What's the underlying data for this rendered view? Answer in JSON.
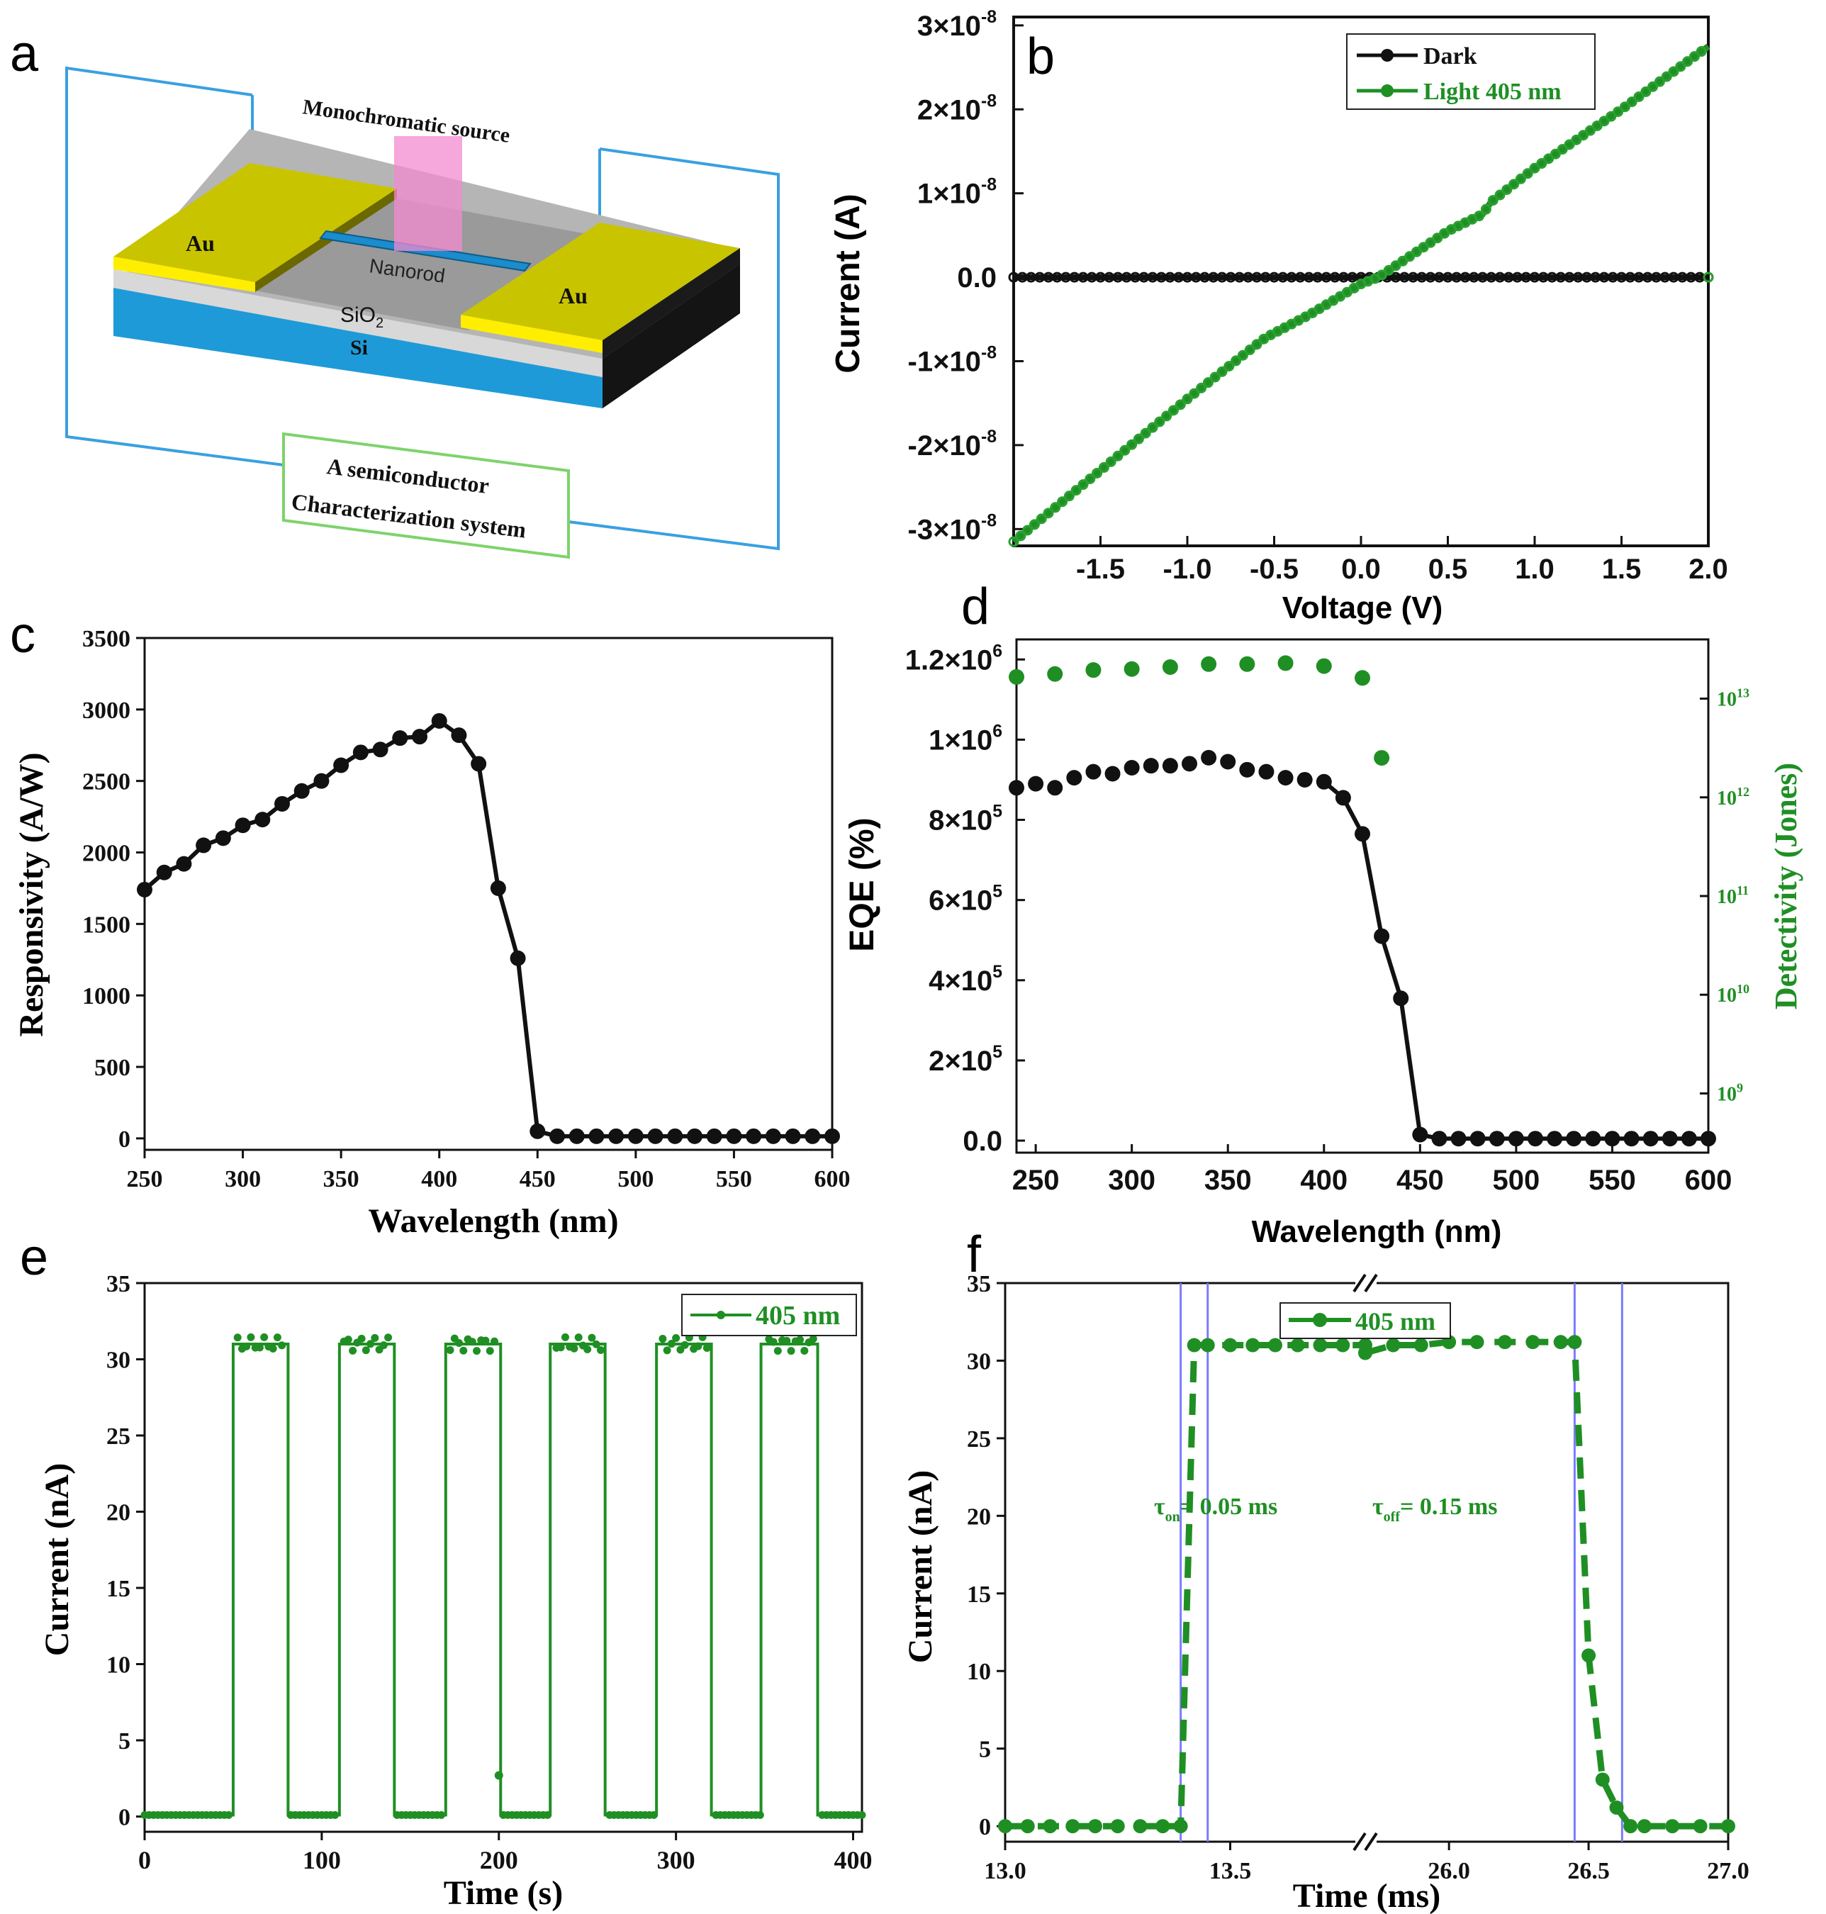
{
  "panel_labels": [
    "a",
    "b",
    "c",
    "d",
    "e",
    "f"
  ],
  "colors": {
    "green": "#1f8f24",
    "black": "#111111",
    "gold": "#c9c400",
    "blue_frame": "#3aa0e0",
    "tau_line": "#7a7aff",
    "pink": "#f38ad0"
  },
  "schematic": {
    "source_label": "Monochromatic source",
    "left_electrode": "Au",
    "right_electrode": "Au",
    "nanorod_label": "Nanorod",
    "oxide_label": "SiO",
    "oxide_sub": "2",
    "substrate_label": "Si",
    "system_line1": "A semiconductor",
    "system_line2": "Characterization system"
  },
  "chart_data": [
    {
      "id": "b",
      "type": "line",
      "xlabel": "Voltage (V)",
      "ylabel": "Current (A)",
      "xlim": [
        -2.0,
        2.0
      ],
      "ylim": [
        -3.2e-08,
        3.1e-08
      ],
      "xticks": [
        -1.5,
        -1.0,
        -0.5,
        0.0,
        0.5,
        1.0,
        1.5,
        2.0
      ],
      "xtick_labels": [
        "-1.5",
        "-1.0",
        "-0.5",
        "0.0",
        "0.5",
        "1.0",
        "1.5",
        "2.0"
      ],
      "yticks": [
        {
          "v": 3e-08,
          "mant": "3",
          "exp": "-8"
        },
        {
          "v": 2e-08,
          "mant": "2",
          "exp": "-8"
        },
        {
          "v": 1e-08,
          "mant": "1",
          "exp": "-8"
        },
        {
          "v": 0,
          "mant": "0.0",
          "exp": ""
        },
        {
          "v": -1e-08,
          "mant": "-1",
          "exp": "-8"
        },
        {
          "v": -2e-08,
          "mant": "-2",
          "exp": "-8"
        },
        {
          "v": -3e-08,
          "mant": "-3",
          "exp": "-8"
        }
      ],
      "legend": [
        "Dark",
        "Light 405 nm"
      ],
      "series": [
        {
          "name": "Dark",
          "color": "#111111",
          "x": [
            -2.0,
            2.0
          ],
          "y": [
            0,
            0
          ]
        },
        {
          "name": "Light 405 nm",
          "color": "#1f8f24",
          "x": [
            -2.0,
            -1.5,
            -1.0,
            -0.6,
            -0.55,
            -0.3,
            0.0,
            0.1,
            0.5,
            0.7,
            0.75,
            1.0,
            1.5,
            2.0
          ],
          "y": [
            -3.15e-08,
            -2.3e-08,
            -1.45e-08,
            -8e-09,
            -7.2e-09,
            -4.5e-09,
            -8e-10,
            0.0,
            5.5e-09,
            7.5e-09,
            9e-09,
            1.3e-08,
            2e-08,
            2.75e-08
          ]
        }
      ]
    },
    {
      "id": "c",
      "type": "line",
      "xlabel": "Wavelength (nm)",
      "ylabel": "Responsivity (A/W)",
      "xlim": [
        250,
        600
      ],
      "ylim": [
        -80,
        3500
      ],
      "xticks": [
        250,
        300,
        350,
        400,
        450,
        500,
        550,
        600
      ],
      "xtick_labels": [
        "250",
        "300",
        "350",
        "400",
        "450",
        "500",
        "550",
        "600"
      ],
      "yticks": [
        0,
        500,
        1000,
        1500,
        2000,
        2500,
        3000,
        3500
      ],
      "ytick_labels": [
        "0",
        "500",
        "1000",
        "1500",
        "2000",
        "2500",
        "3000",
        "3500"
      ],
      "series": [
        {
          "name": "Responsivity",
          "color": "#111111",
          "x": [
            250,
            260,
            270,
            280,
            290,
            300,
            310,
            320,
            330,
            340,
            350,
            360,
            370,
            380,
            390,
            400,
            410,
            420,
            430,
            440,
            450,
            460,
            470,
            480,
            490,
            500,
            510,
            520,
            530,
            540,
            550,
            560,
            570,
            580,
            590,
            600
          ],
          "y": [
            1740,
            1860,
            1920,
            2050,
            2100,
            2190,
            2230,
            2340,
            2430,
            2500,
            2610,
            2700,
            2720,
            2800,
            2810,
            2920,
            2820,
            2620,
            1750,
            1260,
            50,
            15,
            15,
            15,
            15,
            15,
            15,
            15,
            15,
            15,
            15,
            15,
            15,
            15,
            15,
            15
          ]
        }
      ]
    },
    {
      "id": "d",
      "type": "scatter",
      "xlabel": "Wavelength (nm)",
      "ylabel": "EQE (%)",
      "ylabel_right": "Detectivity (Jones)",
      "xlim": [
        240,
        600
      ],
      "ylim": [
        -30000,
        1250000
      ],
      "xticks": [
        250,
        300,
        350,
        400,
        450,
        500,
        550,
        600
      ],
      "xtick_labels": [
        "250",
        "300",
        "350",
        "400",
        "450",
        "500",
        "550",
        "600"
      ],
      "yticks": [
        {
          "v": 0,
          "mant": "0.0",
          "exp": ""
        },
        {
          "v": 200000,
          "mant": "2",
          "exp": "5"
        },
        {
          "v": 400000,
          "mant": "4",
          "exp": "5"
        },
        {
          "v": 600000,
          "mant": "6",
          "exp": "5"
        },
        {
          "v": 800000,
          "mant": "8",
          "exp": "5"
        },
        {
          "v": 1000000,
          "mant": "1",
          "exp": "6"
        },
        {
          "v": 1200000,
          "mant": "1.2",
          "exp": "6"
        }
      ],
      "ylim_right_log10": [
        8.4,
        13.6
      ],
      "yticks_right": [
        {
          "v": 9,
          "base": "10",
          "exp": "9"
        },
        {
          "v": 10,
          "base": "10",
          "exp": "10"
        },
        {
          "v": 11,
          "base": "10",
          "exp": "11"
        },
        {
          "v": 12,
          "base": "10",
          "exp": "12"
        },
        {
          "v": 13,
          "base": "10",
          "exp": "13"
        }
      ],
      "series": [
        {
          "name": "EQE",
          "color": "#111111",
          "axis": "left",
          "x": [
            240,
            250,
            260,
            270,
            280,
            290,
            300,
            310,
            320,
            330,
            340,
            350,
            360,
            370,
            380,
            390,
            400,
            410,
            420,
            430,
            440,
            450,
            460,
            470,
            480,
            490,
            500,
            510,
            520,
            530,
            540,
            550,
            560,
            570,
            580,
            590,
            600
          ],
          "y": [
            880000,
            890000,
            880000,
            905000,
            920000,
            915000,
            930000,
            935000,
            935000,
            940000,
            955000,
            945000,
            925000,
            920000,
            905000,
            900000,
            895000,
            855000,
            765000,
            510000,
            355000,
            15000,
            5000,
            5000,
            5000,
            5000,
            5000,
            5000,
            5000,
            5000,
            5000,
            5000,
            5000,
            5000,
            5000,
            5000,
            5000
          ]
        },
        {
          "name": "Detectivity",
          "color": "#1f8f24",
          "axis": "right",
          "x": [
            240,
            260,
            280,
            300,
            320,
            340,
            360,
            380,
            400,
            420,
            430
          ],
          "y_log10": [
            13.22,
            13.25,
            13.29,
            13.3,
            13.32,
            13.35,
            13.35,
            13.36,
            13.33,
            13.21,
            12.4
          ]
        }
      ]
    },
    {
      "id": "e",
      "type": "line",
      "xlabel": "Time (s)",
      "ylabel": "Current (nA)",
      "xlim": [
        0,
        405
      ],
      "ylim": [
        -1,
        35
      ],
      "xticks": [
        0,
        100,
        200,
        300,
        400
      ],
      "xtick_labels": [
        "0",
        "100",
        "200",
        "300",
        "400"
      ],
      "yticks": [
        0,
        5,
        10,
        15,
        20,
        25,
        30,
        35
      ],
      "ytick_labels": [
        "0",
        "5",
        "10",
        "15",
        "20",
        "25",
        "30",
        "35"
      ],
      "legend": [
        "405 nm"
      ],
      "on_intervals": [
        [
          50,
          81
        ],
        [
          110,
          141
        ],
        [
          170,
          201
        ],
        [
          229,
          260
        ],
        [
          289,
          320
        ],
        [
          348,
          380
        ]
      ],
      "on_level": 31.0,
      "off_level": 0.1,
      "extra_points": [
        {
          "x": 200,
          "y": 2.7
        }
      ],
      "series": [
        {
          "name": "405 nm",
          "color": "#1f8f24"
        }
      ]
    },
    {
      "id": "f",
      "type": "line",
      "xlabel": "Time (ms)",
      "ylabel": "Current (nA)",
      "ylim": [
        -1,
        35
      ],
      "xtick_labels": [
        "13.0",
        "13.5",
        "26.0",
        "26.5",
        "27.0"
      ],
      "yticks": [
        0,
        5,
        10,
        15,
        20,
        25,
        30,
        35
      ],
      "ytick_labels": [
        "0",
        "5",
        "10",
        "15",
        "20",
        "25",
        "30",
        "35"
      ],
      "legend": [
        "405 nm"
      ],
      "annotation_on": {
        "tau": "τ",
        "sub": "on",
        "text": "= 0.05 ms"
      },
      "annotation_off": {
        "tau": "τ",
        "sub": "off",
        "text": "= 0.15 ms"
      },
      "segments": [
        {
          "xlim": [
            13.0,
            13.8
          ],
          "x": [
            13.0,
            13.05,
            13.1,
            13.15,
            13.2,
            13.25,
            13.3,
            13.35,
            13.39,
            13.42,
            13.45,
            13.5,
            13.55,
            13.6,
            13.65,
            13.7,
            13.75,
            13.8
          ],
          "y": [
            0,
            0,
            0,
            0,
            0,
            0,
            0,
            0,
            0,
            31,
            31,
            31,
            31,
            31,
            31,
            31,
            31,
            31
          ]
        },
        {
          "xlim": [
            25.7,
            27.0
          ],
          "x": [
            25.7,
            25.8,
            25.9,
            26.0,
            26.1,
            26.2,
            26.3,
            26.4,
            26.45,
            26.5,
            26.55,
            26.6,
            26.65,
            26.7,
            26.8,
            26.9,
            27.0
          ],
          "y": [
            30.5,
            31,
            31,
            31.2,
            31.2,
            31.2,
            31.2,
            31.2,
            31.2,
            11,
            3,
            1.2,
            0,
            0,
            0,
            0,
            0
          ]
        }
      ],
      "tau_lines_ms": [
        13.39,
        13.45,
        26.45,
        26.62
      ],
      "series": [
        {
          "name": "405 nm",
          "color": "#1f8f24"
        }
      ]
    }
  ]
}
